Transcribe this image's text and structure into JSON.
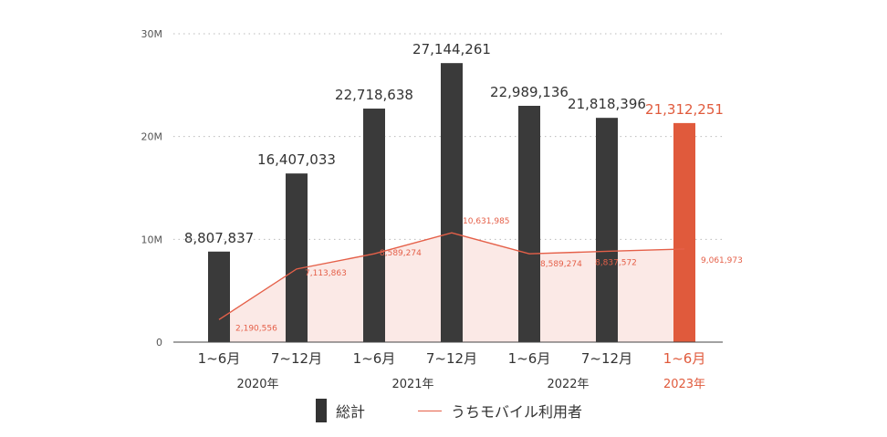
{
  "chart_data": {
    "type": "bar",
    "categories": [
      "1~6月",
      "7~12月",
      "1~6月",
      "7~12月",
      "1~6月",
      "7~12月",
      "1~6月"
    ],
    "year_groups": [
      {
        "label": "2020年",
        "highlight": false
      },
      {
        "label": "2021年",
        "highlight": false
      },
      {
        "label": "2022年",
        "highlight": false
      },
      {
        "label": "2023年",
        "highlight": true
      }
    ],
    "y_ticks": [
      {
        "value": 0,
        "label": "0"
      },
      {
        "value": 10000000,
        "label": "10M"
      },
      {
        "value": 20000000,
        "label": "20M"
      },
      {
        "value": 30000000,
        "label": "30M"
      }
    ],
    "ylim": [
      0,
      30000000
    ],
    "grid": true,
    "series": [
      {
        "name": "総計",
        "kind": "bar",
        "values": [
          8807837,
          16407033,
          22718638,
          27144261,
          22989136,
          21818396,
          21312251
        ],
        "labels": [
          "8,807,837",
          "16,407,033",
          "22,718,638",
          "27,144,261",
          "22,989,136",
          "21,818,396",
          "21,312,251"
        ]
      },
      {
        "name": "うちモバイル利用者",
        "kind": "area-line",
        "values": [
          2190556,
          7113863,
          8589274,
          10631985,
          8589274,
          8837572,
          9061973
        ],
        "labels": [
          "2,190,556",
          "7,113,863",
          "8,589,274",
          "10,631,985",
          "8,589,274",
          "8,837,572",
          "9,061,973"
        ]
      }
    ],
    "legend_position": "bottom",
    "colors": {
      "bar": "#3a3a3a",
      "highlight": "#e05a3c",
      "line": "#e56049",
      "area": "#fbe9e6",
      "text": "#333333",
      "grid": "#bbbbbb"
    }
  },
  "legend": {
    "bar_label": "総計",
    "line_label": "うちモバイル利用者"
  }
}
